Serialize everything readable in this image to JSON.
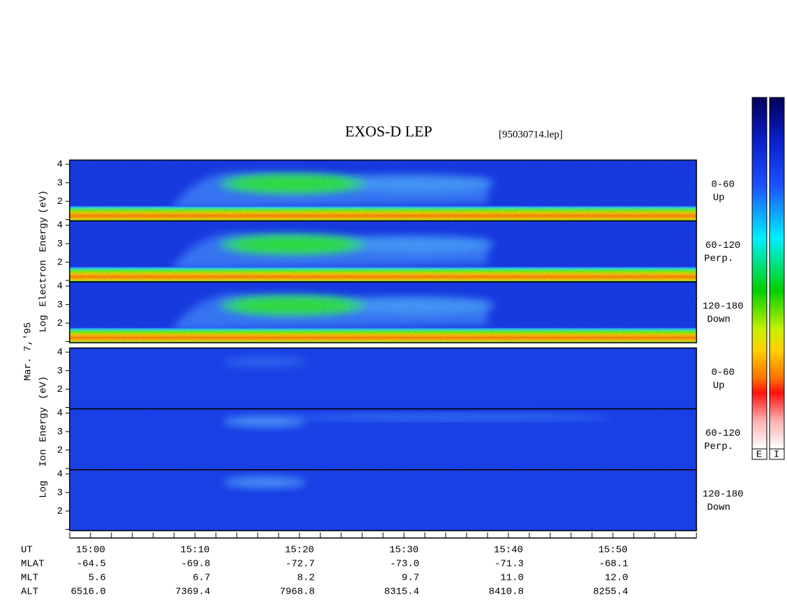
{
  "header": {
    "title": "EXOS-D LEP",
    "file": "[95030714.lep]"
  },
  "date": "Mar. 7,'95",
  "electron_axis_label": [
    "Log",
    "Electron",
    "Energy",
    "(eV)"
  ],
  "ion_axis_label": [
    "Log",
    "Ion",
    "Energy",
    "(eV)"
  ],
  "energy_ticks": [
    4,
    3,
    2
  ],
  "panels": [
    {
      "label": "0-60",
      "sublabel": "Up"
    },
    {
      "label": "60-120",
      "sublabel": "Perp."
    },
    {
      "label": "120-180",
      "sublabel": "Down"
    }
  ],
  "colorbar_labels": [
    "E",
    "I"
  ],
  "orbit_table": {
    "row_labels": [
      "UT",
      "MLAT",
      "MLT",
      "ALT"
    ],
    "rows": [
      [
        "15:00",
        "15:10",
        "15:20",
        "15:30",
        "15:40",
        "15:50"
      ],
      [
        "-64.5",
        "-69.8",
        "-72.7",
        "-73.0",
        "-71.3",
        "-68.1"
      ],
      [
        "5.6",
        "6.7",
        "8.2",
        "9.7",
        "11.0",
        "12.0"
      ],
      [
        "6516.0",
        "7369.4",
        "7968.8",
        "8315.4",
        "8410.8",
        "8255.4"
      ]
    ]
  }
}
